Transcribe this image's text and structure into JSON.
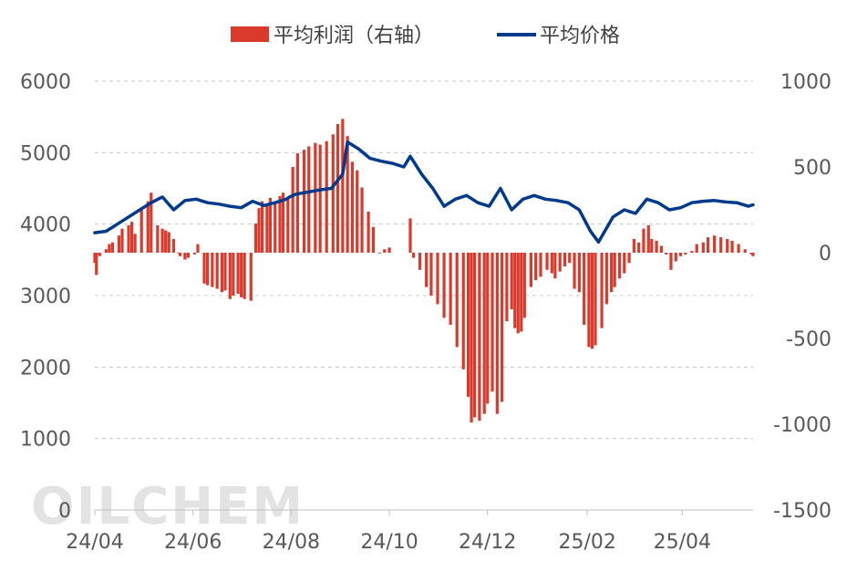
{
  "watermark": "OILCHEM",
  "chart_data": {
    "type": "bar+line",
    "legend_position": "top-center",
    "grid": "horizontal-dashed",
    "x_tick_labels": [
      "24/04",
      "24/06",
      "24/08",
      "24/10",
      "24/12",
      "25/02",
      "25/04"
    ],
    "x_range": [
      "2024-04-01",
      "2025-05-15"
    ],
    "y_left": {
      "min": 0,
      "max": 6000,
      "ticks": [
        0,
        1000,
        2000,
        3000,
        4000,
        5000,
        6000
      ]
    },
    "y_right": {
      "min": -1500,
      "max": 1000,
      "ticks": [
        -1500,
        -1000,
        -500,
        0,
        500,
        1000
      ]
    },
    "series": [
      {
        "name": "平均利润（右轴）",
        "kind": "bar",
        "axis": "right",
        "color": "#d93a2b",
        "points": [
          [
            "2024-04-01",
            -60
          ],
          [
            "2024-04-02",
            -130
          ],
          [
            "2024-04-04",
            -20
          ],
          [
            "2024-04-08",
            20
          ],
          [
            "2024-04-10",
            50
          ],
          [
            "2024-04-12",
            60
          ],
          [
            "2024-04-16",
            100
          ],
          [
            "2024-04-18",
            140
          ],
          [
            "2024-04-22",
            160
          ],
          [
            "2024-04-24",
            180
          ],
          [
            "2024-04-26",
            110
          ],
          [
            "2024-04-30",
            250
          ],
          [
            "2024-05-04",
            300
          ],
          [
            "2024-05-06",
            350
          ],
          [
            "2024-05-10",
            160
          ],
          [
            "2024-05-13",
            140
          ],
          [
            "2024-05-15",
            130
          ],
          [
            "2024-05-17",
            120
          ],
          [
            "2024-05-20",
            80
          ],
          [
            "2024-05-23",
            0
          ],
          [
            "2024-05-24",
            -20
          ],
          [
            "2024-05-27",
            -40
          ],
          [
            "2024-05-29",
            -30
          ],
          [
            "2024-06-02",
            -10
          ],
          [
            "2024-06-04",
            50
          ],
          [
            "2024-06-08",
            -180
          ],
          [
            "2024-06-10",
            -190
          ],
          [
            "2024-06-13",
            -200
          ],
          [
            "2024-06-16",
            -210
          ],
          [
            "2024-06-19",
            -230
          ],
          [
            "2024-06-21",
            -220
          ],
          [
            "2024-06-24",
            -270
          ],
          [
            "2024-06-26",
            -250
          ],
          [
            "2024-06-29",
            -240
          ],
          [
            "2024-07-01",
            -260
          ],
          [
            "2024-07-03",
            -270
          ],
          [
            "2024-07-07",
            -280
          ],
          [
            "2024-07-10",
            170
          ],
          [
            "2024-07-12",
            260
          ],
          [
            "2024-07-14",
            300
          ],
          [
            "2024-07-17",
            280
          ],
          [
            "2024-07-19",
            320
          ],
          [
            "2024-07-22",
            300
          ],
          [
            "2024-07-25",
            330
          ],
          [
            "2024-07-27",
            350
          ],
          [
            "2024-07-30",
            320
          ],
          [
            "2024-08-02",
            500
          ],
          [
            "2024-08-05",
            580
          ],
          [
            "2024-08-09",
            600
          ],
          [
            "2024-08-12",
            620
          ],
          [
            "2024-08-16",
            640
          ],
          [
            "2024-08-19",
            630
          ],
          [
            "2024-08-23",
            650
          ],
          [
            "2024-08-27",
            690
          ],
          [
            "2024-08-30",
            750
          ],
          [
            "2024-09-02",
            780
          ],
          [
            "2024-09-05",
            680
          ],
          [
            "2024-09-08",
            530
          ],
          [
            "2024-09-11",
            480
          ],
          [
            "2024-09-14",
            380
          ],
          [
            "2024-09-18",
            240
          ],
          [
            "2024-09-21",
            150
          ],
          [
            "2024-09-25",
            0
          ],
          [
            "2024-09-28",
            20
          ],
          [
            "2024-10-01",
            30
          ],
          [
            "2024-10-14",
            200
          ],
          [
            "2024-10-16",
            -30
          ],
          [
            "2024-10-20",
            -100
          ],
          [
            "2024-10-24",
            -200
          ],
          [
            "2024-10-27",
            -250
          ],
          [
            "2024-10-31",
            -300
          ],
          [
            "2024-11-04",
            -380
          ],
          [
            "2024-11-08",
            -420
          ],
          [
            "2024-11-12",
            -550
          ],
          [
            "2024-11-16",
            -680
          ],
          [
            "2024-11-19",
            -840
          ],
          [
            "2024-11-21",
            -990
          ],
          [
            "2024-11-23",
            -960
          ],
          [
            "2024-11-26",
            -980
          ],
          [
            "2024-11-29",
            -940
          ],
          [
            "2024-12-01",
            -880
          ],
          [
            "2024-12-04",
            -810
          ],
          [
            "2024-12-07",
            -940
          ],
          [
            "2024-12-10",
            -870
          ],
          [
            "2024-12-13",
            -400
          ],
          [
            "2024-12-16",
            -330
          ],
          [
            "2024-12-18",
            -440
          ],
          [
            "2024-12-20",
            -470
          ],
          [
            "2024-12-22",
            -460
          ],
          [
            "2024-12-24",
            -380
          ],
          [
            "2024-12-28",
            -200
          ],
          [
            "2024-12-31",
            -160
          ],
          [
            "2025-01-03",
            -140
          ],
          [
            "2025-01-07",
            -100
          ],
          [
            "2025-01-10",
            -120
          ],
          [
            "2025-01-12",
            -150
          ],
          [
            "2025-01-15",
            -110
          ],
          [
            "2025-01-18",
            -80
          ],
          [
            "2025-01-21",
            -60
          ],
          [
            "2025-01-24",
            -210
          ],
          [
            "2025-01-27",
            -230
          ],
          [
            "2025-01-30",
            -420
          ],
          [
            "2025-02-02",
            -550
          ],
          [
            "2025-02-04",
            -560
          ],
          [
            "2025-02-06",
            -540
          ],
          [
            "2025-02-10",
            -440
          ],
          [
            "2025-02-13",
            -300
          ],
          [
            "2025-02-16",
            -230
          ],
          [
            "2025-02-18",
            -200
          ],
          [
            "2025-02-21",
            -150
          ],
          [
            "2025-02-24",
            -120
          ],
          [
            "2025-02-27",
            -60
          ],
          [
            "2025-03-02",
            80
          ],
          [
            "2025-03-05",
            60
          ],
          [
            "2025-03-08",
            140
          ],
          [
            "2025-03-11",
            160
          ],
          [
            "2025-03-13",
            80
          ],
          [
            "2025-03-16",
            70
          ],
          [
            "2025-03-19",
            40
          ],
          [
            "2025-03-22",
            -10
          ],
          [
            "2025-03-25",
            -100
          ],
          [
            "2025-03-28",
            -50
          ],
          [
            "2025-03-31",
            -20
          ],
          [
            "2025-04-03",
            -10
          ],
          [
            "2025-04-07",
            10
          ],
          [
            "2025-04-10",
            50
          ],
          [
            "2025-04-14",
            60
          ],
          [
            "2025-04-17",
            90
          ],
          [
            "2025-04-21",
            100
          ],
          [
            "2025-04-25",
            90
          ],
          [
            "2025-04-29",
            80
          ],
          [
            "2025-05-02",
            70
          ],
          [
            "2025-05-06",
            50
          ],
          [
            "2025-05-10",
            20
          ],
          [
            "2025-05-14",
            -10
          ],
          [
            "2025-05-15",
            -20
          ]
        ]
      },
      {
        "name": "平均价格",
        "kind": "line",
        "axis": "left",
        "color": "#003a8c",
        "points": [
          [
            "2024-04-01",
            3880
          ],
          [
            "2024-04-08",
            3900
          ],
          [
            "2024-04-15",
            4000
          ],
          [
            "2024-04-22",
            4100
          ],
          [
            "2024-04-29",
            4200
          ],
          [
            "2024-05-06",
            4300
          ],
          [
            "2024-05-13",
            4380
          ],
          [
            "2024-05-20",
            4200
          ],
          [
            "2024-05-27",
            4330
          ],
          [
            "2024-06-03",
            4350
          ],
          [
            "2024-06-10",
            4300
          ],
          [
            "2024-06-17",
            4280
          ],
          [
            "2024-06-24",
            4250
          ],
          [
            "2024-07-01",
            4230
          ],
          [
            "2024-07-08",
            4320
          ],
          [
            "2024-07-15",
            4260
          ],
          [
            "2024-07-22",
            4300
          ],
          [
            "2024-07-29",
            4350
          ],
          [
            "2024-07-31",
            4380
          ],
          [
            "2024-08-04",
            4420
          ],
          [
            "2024-08-12",
            4450
          ],
          [
            "2024-08-19",
            4480
          ],
          [
            "2024-08-26",
            4500
          ],
          [
            "2024-09-02",
            4700
          ],
          [
            "2024-09-05",
            5150
          ],
          [
            "2024-09-12",
            5050
          ],
          [
            "2024-09-19",
            4920
          ],
          [
            "2024-09-26",
            4880
          ],
          [
            "2024-10-03",
            4850
          ],
          [
            "2024-10-10",
            4800
          ],
          [
            "2024-10-14",
            4950
          ],
          [
            "2024-10-21",
            4700
          ],
          [
            "2024-10-28",
            4500
          ],
          [
            "2024-11-04",
            4250
          ],
          [
            "2024-11-11",
            4350
          ],
          [
            "2024-11-18",
            4400
          ],
          [
            "2024-11-25",
            4300
          ],
          [
            "2024-12-02",
            4250
          ],
          [
            "2024-12-09",
            4500
          ],
          [
            "2024-12-16",
            4200
          ],
          [
            "2024-12-23",
            4350
          ],
          [
            "2024-12-30",
            4400
          ],
          [
            "2025-01-06",
            4350
          ],
          [
            "2025-01-13",
            4330
          ],
          [
            "2025-01-20",
            4300
          ],
          [
            "2025-01-27",
            4200
          ],
          [
            "2025-02-03",
            3900
          ],
          [
            "2025-02-08",
            3750
          ],
          [
            "2025-02-17",
            4100
          ],
          [
            "2025-02-24",
            4200
          ],
          [
            "2025-03-03",
            4150
          ],
          [
            "2025-03-10",
            4350
          ],
          [
            "2025-03-17",
            4300
          ],
          [
            "2025-03-24",
            4200
          ],
          [
            "2025-03-31",
            4230
          ],
          [
            "2025-04-07",
            4300
          ],
          [
            "2025-04-14",
            4320
          ],
          [
            "2025-04-21",
            4330
          ],
          [
            "2025-04-28",
            4310
          ],
          [
            "2025-05-05",
            4300
          ],
          [
            "2025-05-12",
            4250
          ],
          [
            "2025-05-15",
            4270
          ]
        ]
      }
    ]
  }
}
